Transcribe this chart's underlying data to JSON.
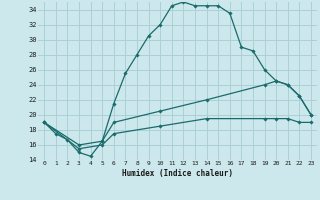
{
  "xlabel": "Humidex (Indice chaleur)",
  "bg_color": "#cce8ec",
  "grid_color": "#aad0d6",
  "line_color": "#1a6b6b",
  "xlim": [
    -0.5,
    23.5
  ],
  "ylim": [
    14,
    35
  ],
  "yticks": [
    14,
    16,
    18,
    20,
    22,
    24,
    26,
    28,
    30,
    32,
    34
  ],
  "xticks": [
    0,
    1,
    2,
    3,
    4,
    5,
    6,
    7,
    8,
    9,
    10,
    11,
    12,
    13,
    14,
    15,
    16,
    17,
    18,
    19,
    20,
    21,
    22,
    23
  ],
  "curve1_x": [
    0,
    1,
    2,
    3,
    4,
    5,
    6,
    7,
    8,
    9,
    10,
    11,
    12,
    13,
    14,
    15,
    16,
    17,
    18,
    19,
    20,
    21,
    22,
    23
  ],
  "curve1_y": [
    19.0,
    17.5,
    16.7,
    15.0,
    14.5,
    16.5,
    21.5,
    25.5,
    28.0,
    30.5,
    32.0,
    34.5,
    35.0,
    34.5,
    34.5,
    34.5,
    33.5,
    29.0,
    28.5,
    26.0,
    24.5,
    24.0,
    22.5,
    20.0
  ],
  "curve2_x": [
    0,
    3,
    5,
    6,
    10,
    14,
    19,
    20,
    21,
    22,
    23
  ],
  "curve2_y": [
    19.0,
    16.0,
    16.5,
    19.0,
    20.5,
    22.0,
    24.0,
    24.5,
    24.0,
    22.5,
    20.0
  ],
  "curve3_x": [
    0,
    3,
    5,
    6,
    10,
    14,
    19,
    20,
    21,
    22,
    23
  ],
  "curve3_y": [
    19.0,
    15.5,
    16.0,
    17.5,
    18.5,
    19.5,
    19.5,
    19.5,
    19.5,
    19.0,
    19.0
  ]
}
